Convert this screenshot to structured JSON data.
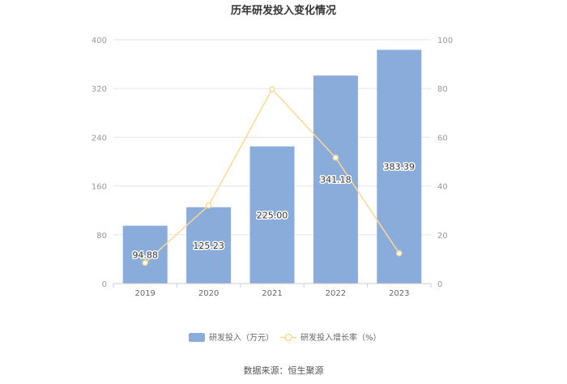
{
  "chart_data": {
    "type": "bar",
    "title": "历年研发投入变化情况",
    "categories": [
      "2019",
      "2020",
      "2021",
      "2022",
      "2023"
    ],
    "series": [
      {
        "name": "研发投入（万元）",
        "type": "bar",
        "axis": "left",
        "color": "#8aacda",
        "values": [
          94.88,
          125.23,
          225.0,
          341.18,
          383.39
        ],
        "labels": [
          "94.88",
          "125.23",
          "225.00",
          "341.18",
          "383.39"
        ]
      },
      {
        "name": "研发投入增长率（%）",
        "type": "line",
        "axis": "right",
        "color": "#fbd892",
        "values": [
          8.5,
          32.0,
          79.7,
          51.6,
          12.4
        ]
      }
    ],
    "y_left": {
      "min": 0,
      "max": 400,
      "ticks": [
        "0",
        "80",
        "160",
        "240",
        "320",
        "400"
      ]
    },
    "y_right": {
      "min": 0,
      "max": 100,
      "ticks": [
        "0",
        "20",
        "40",
        "60",
        "80",
        "100"
      ]
    },
    "grid": true,
    "legend_position": "bottom"
  },
  "source_text": "数据来源：恒生聚源"
}
